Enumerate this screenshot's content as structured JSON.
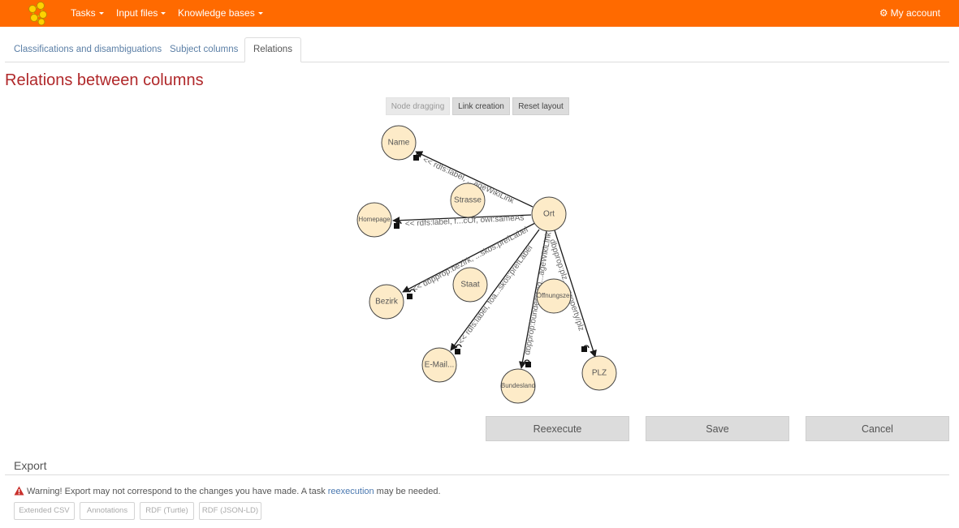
{
  "navbar": {
    "menus": [
      {
        "label": "Tasks"
      },
      {
        "label": "Input files"
      },
      {
        "label": "Knowledge bases"
      }
    ],
    "account_label": "My account",
    "accent_color": "#ff6a00"
  },
  "tabs": [
    {
      "label": "Classifications and disambiguations",
      "active": false
    },
    {
      "label": "Subject columns",
      "active": false
    },
    {
      "label": "Relations",
      "active": true
    }
  ],
  "page_title": "Relations between columns",
  "graph_modes": [
    {
      "label": "Node dragging",
      "enabled": false
    },
    {
      "label": "Link creation",
      "enabled": true
    },
    {
      "label": "Reset layout",
      "enabled": true
    }
  ],
  "graph": {
    "nodes": {
      "name": "Name",
      "strasse": "Strasse",
      "homepage": "Homepage",
      "ort": "Ort",
      "bezirk": "Bezirk",
      "staat": "Staat",
      "oeffnungszeiten": "Öffnungszei",
      "email": "E-Mail...",
      "bundesland": "Bundesland",
      "plz": "PLZ"
    },
    "edges": {
      "ort_name": "<< rdfs:label, ...ageWikiLink",
      "ort_homepage": "<< rdfs:label, f...cOf, owl:sameAs",
      "ort_bezirk": "<< dbpprop:bezirk, ...skos:prefLabel",
      "ort_email": "<< rdfs:label, foa...skos:prefLabel",
      "ort_bundesland": "dbpprop:bundesland...ageWikiLink",
      "ort_plz": "dbpprop:plz, ...property/plz"
    }
  },
  "actions": {
    "reexecute": "Reexecute",
    "save": "Save",
    "cancel": "Cancel"
  },
  "export": {
    "title": "Export",
    "warning_before": "Warning! Export may not correspond to the changes you have made. A task ",
    "warning_link": "reexecution",
    "warning_after": " may be needed.",
    "buttons": [
      "Extended CSV",
      "Annotations",
      "RDF (Turtle)",
      "RDF (JSON-LD)"
    ]
  }
}
